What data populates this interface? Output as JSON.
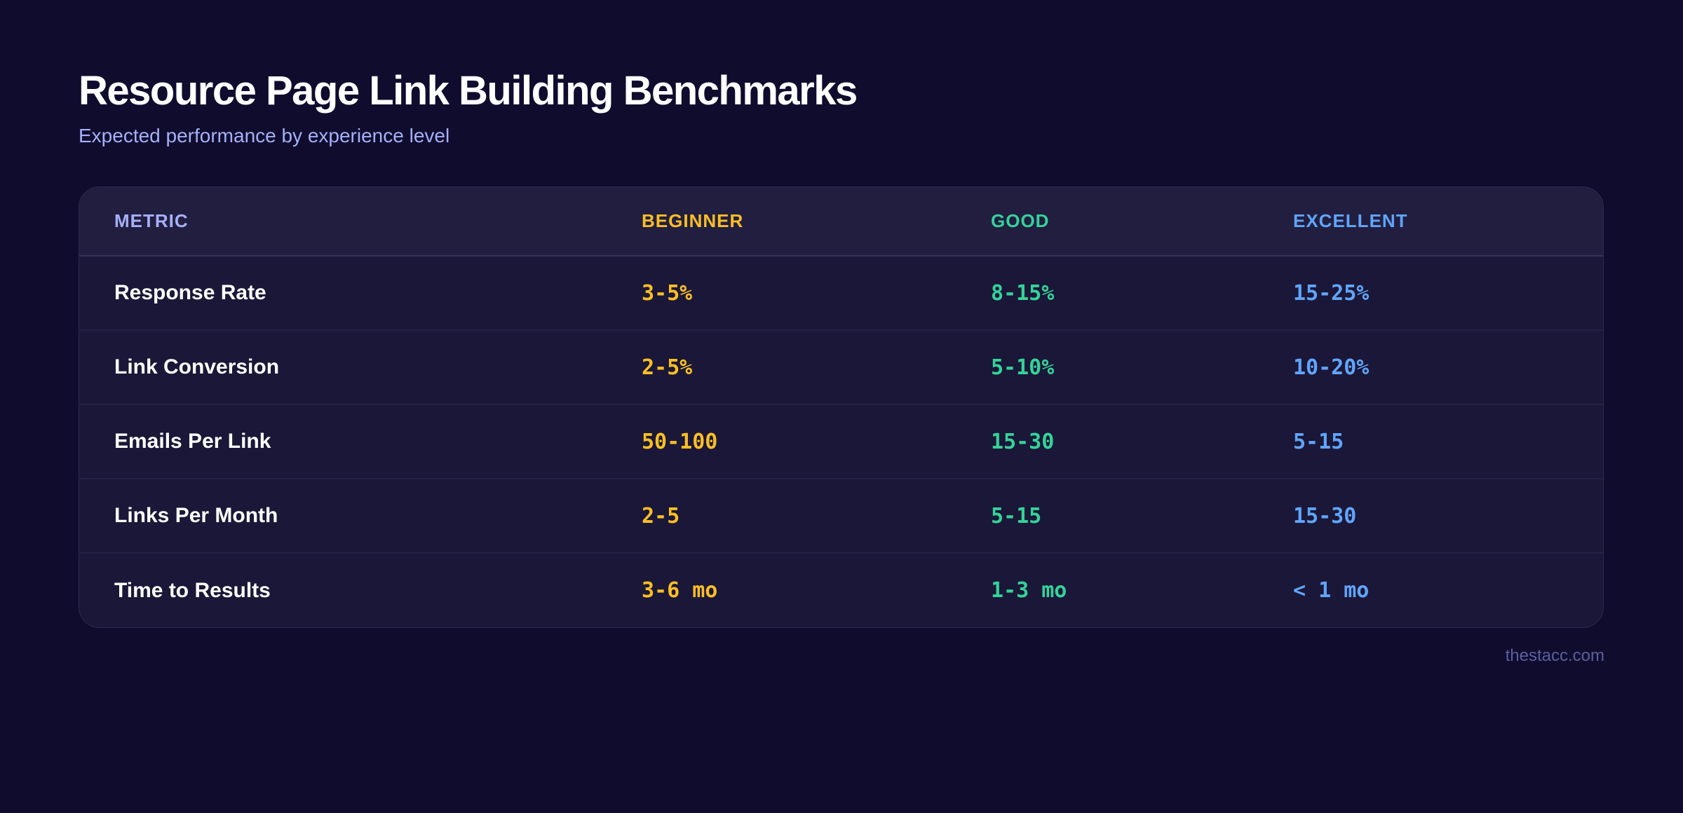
{
  "header": {
    "title": "Resource Page Link Building Benchmarks",
    "subtitle": "Expected performance by experience level"
  },
  "table": {
    "columns": [
      {
        "key": "metric",
        "label": "METRIC",
        "color": "#a5b0f7"
      },
      {
        "key": "beginner",
        "label": "BEGINNER",
        "color": "#fbbf24"
      },
      {
        "key": "good",
        "label": "GOOD",
        "color": "#34d399"
      },
      {
        "key": "excellent",
        "label": "EXCELLENT",
        "color": "#60a5fa"
      }
    ],
    "rows": [
      {
        "metric": "Response Rate",
        "beginner": "3-5%",
        "good": "8-15%",
        "excellent": "15-25%"
      },
      {
        "metric": "Link Conversion",
        "beginner": "2-5%",
        "good": "5-10%",
        "excellent": "10-20%"
      },
      {
        "metric": "Emails Per Link",
        "beginner": "50-100",
        "good": "15-30",
        "excellent": "5-15"
      },
      {
        "metric": "Links Per Month",
        "beginner": "2-5",
        "good": "5-15",
        "excellent": "15-30"
      },
      {
        "metric": "Time to Results",
        "beginner": "3-6 mo",
        "good": "1-3 mo",
        "excellent": "< 1 mo"
      }
    ]
  },
  "footer": {
    "source": "thestacc.com"
  },
  "colors": {
    "background": "#100c2e",
    "card": "#1b1738",
    "card_header": "#221e40",
    "beginner": "#fbbf24",
    "good": "#34d399",
    "excellent": "#60a5fa",
    "metric_header": "#a5b0f7"
  }
}
